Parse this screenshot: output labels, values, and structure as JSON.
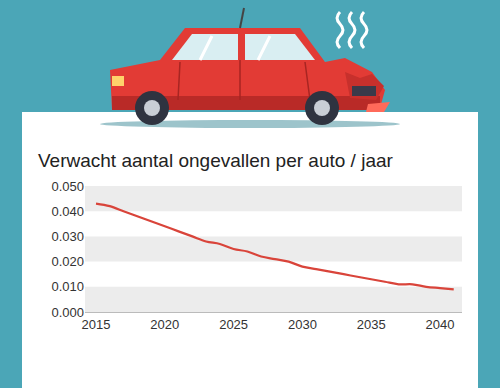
{
  "chart_data": {
    "type": "line",
    "title": "Verwacht aantal ongevallen per auto / jaar",
    "x": [
      2015,
      2016,
      2017,
      2018,
      2019,
      2020,
      2021,
      2022,
      2023,
      2024,
      2025,
      2026,
      2027,
      2028,
      2029,
      2030,
      2031,
      2032,
      2033,
      2034,
      2035,
      2036,
      2037,
      2038,
      2039,
      2040,
      2041
    ],
    "values": [
      0.043,
      0.042,
      0.04,
      0.038,
      0.036,
      0.034,
      0.032,
      0.03,
      0.028,
      0.027,
      0.025,
      0.024,
      0.022,
      0.021,
      0.02,
      0.018,
      0.017,
      0.016,
      0.015,
      0.014,
      0.013,
      0.012,
      0.011,
      0.011,
      0.01,
      0.0095,
      0.009
    ],
    "color": "#d9443a",
    "xlim": [
      2014.2,
      2041.6
    ],
    "xticks": [
      2015,
      2020,
      2025,
      2030,
      2035,
      2040
    ],
    "ylim": [
      0,
      0.05
    ],
    "yticks": [
      {
        "value": 0,
        "label": "0.000"
      },
      {
        "value": 0.01,
        "label": "0.010"
      },
      {
        "value": 0.02,
        "label": "0.020"
      },
      {
        "value": 0.03,
        "label": "0.030"
      },
      {
        "value": 0.04,
        "label": "0.040"
      },
      {
        "value": 0.05,
        "label": "0.050"
      }
    ],
    "grid": true
  }
}
